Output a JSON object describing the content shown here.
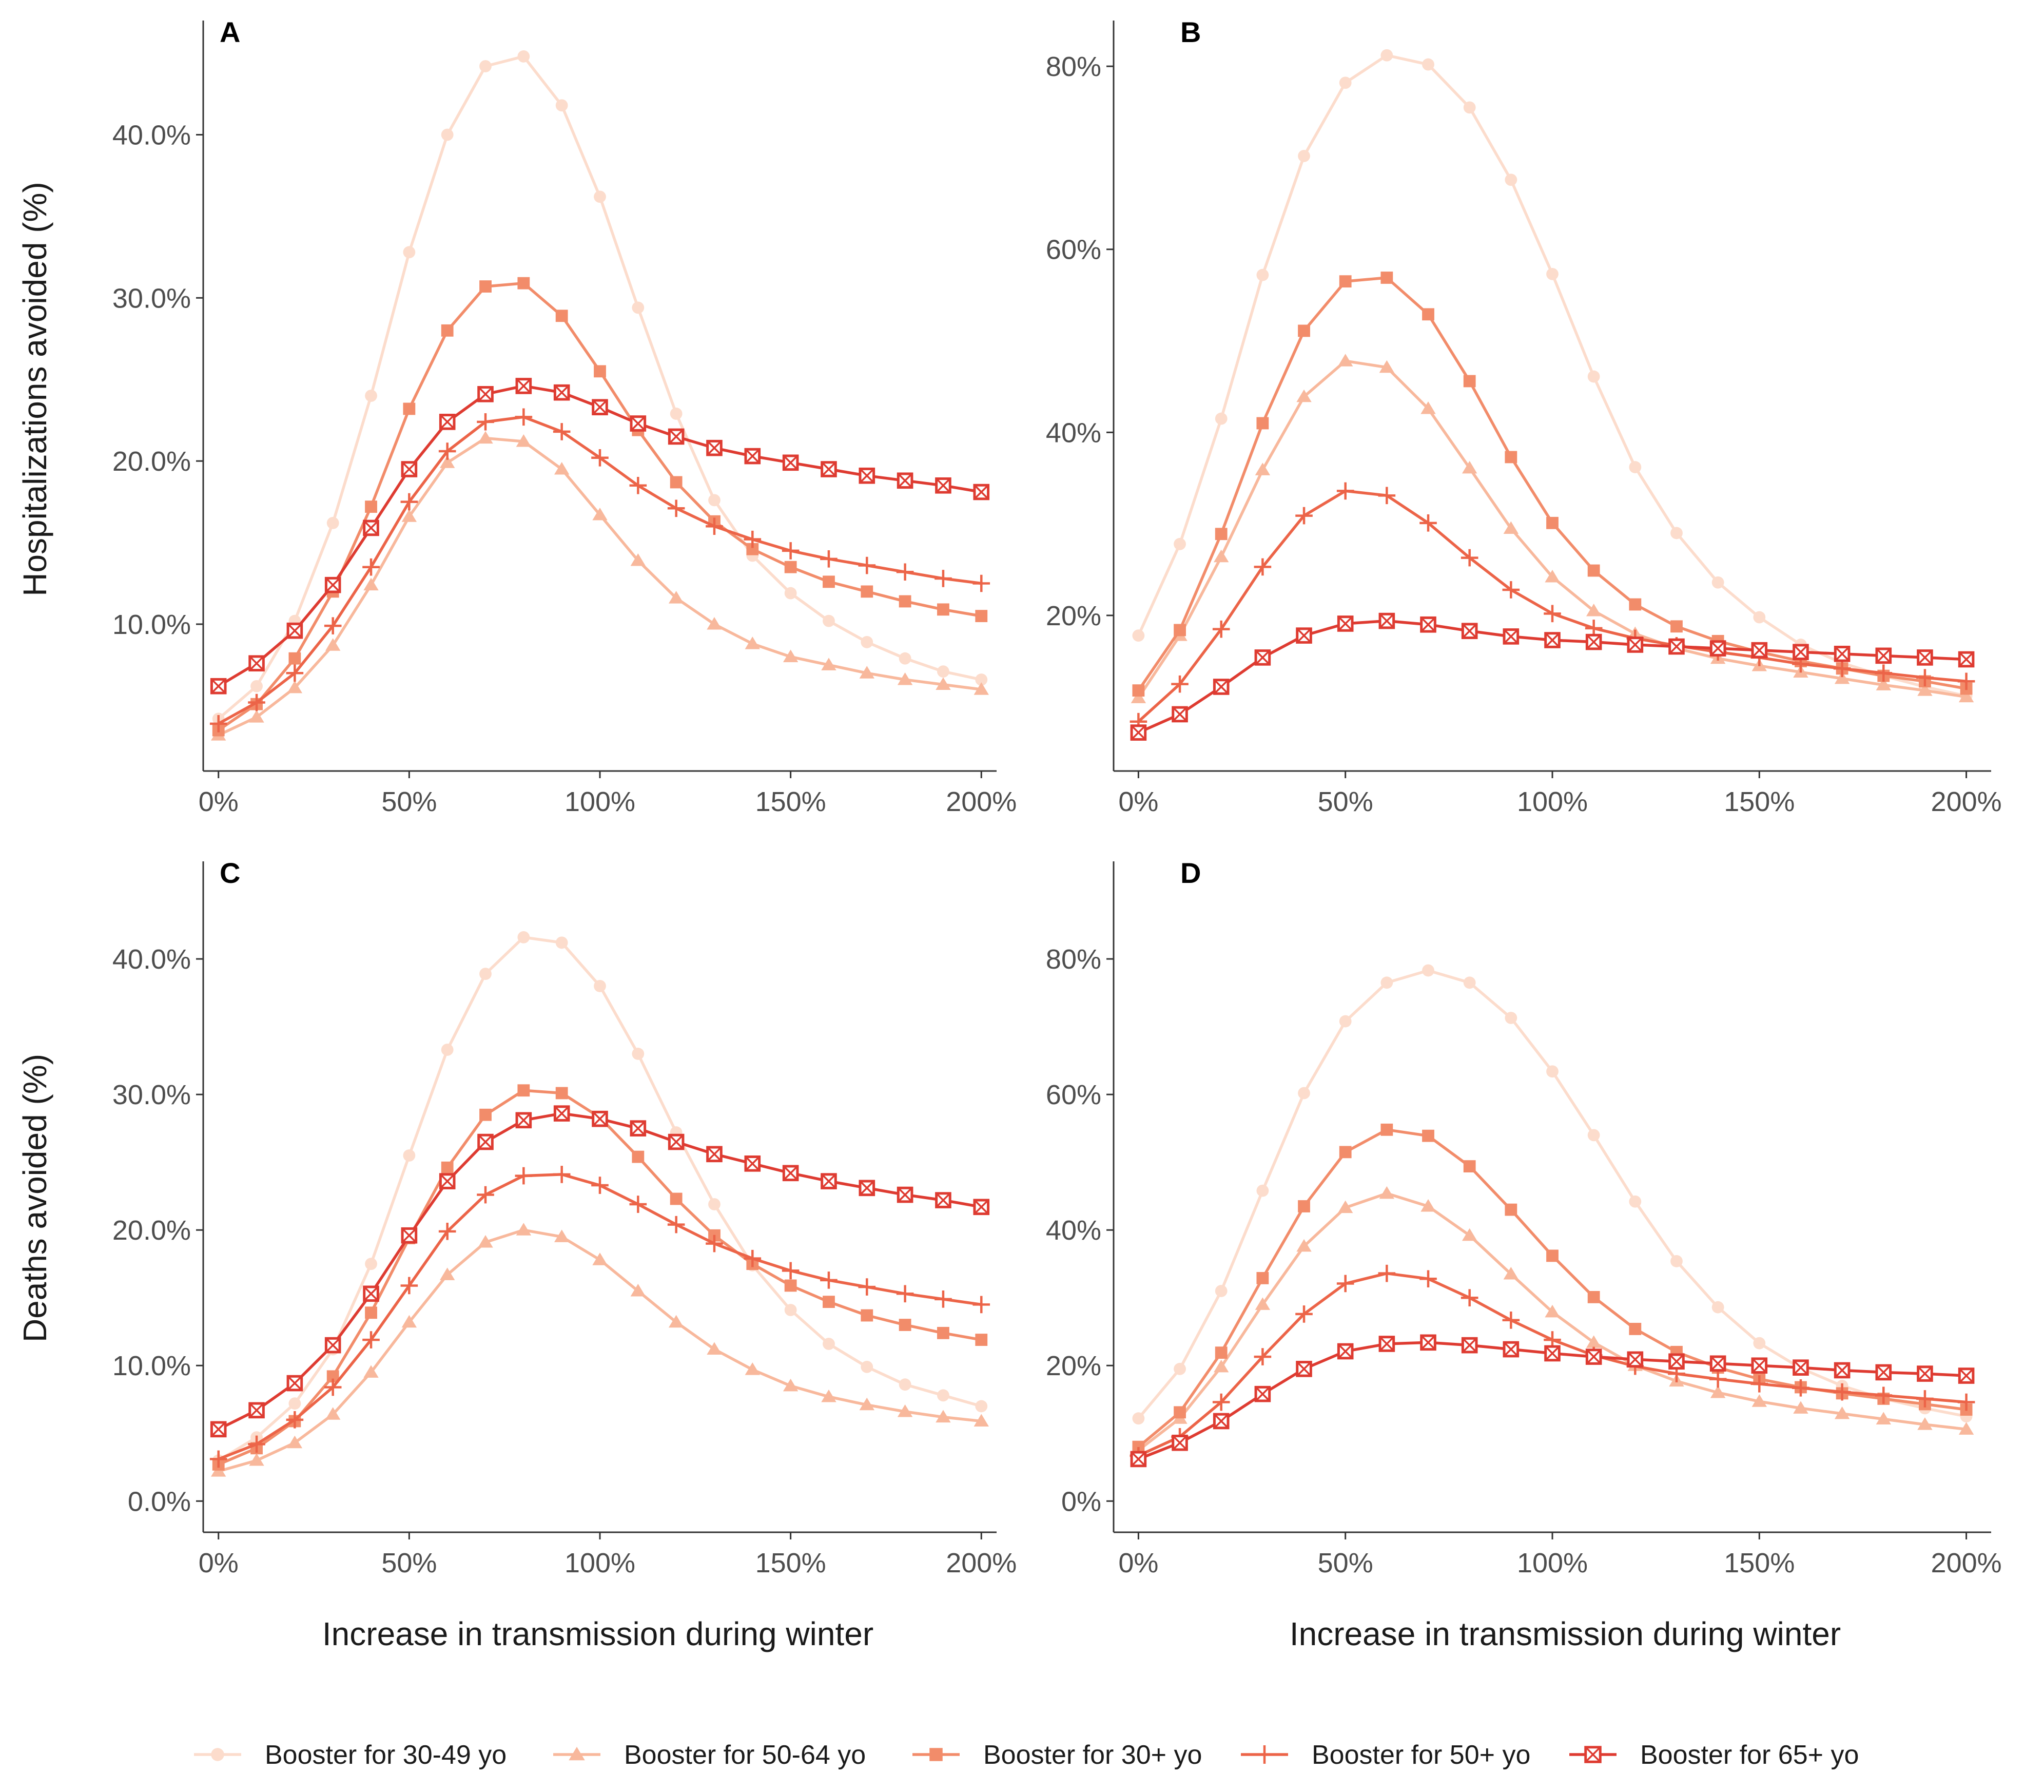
{
  "colors": {
    "Booster for 30-49 yo": "#FCDCCC",
    "Booster for 50-64 yo": "#F8B89C",
    "Booster for 30+ yo": "#F28C6A",
    "Booster for 50+ yo": "#EC6448",
    "Booster for 65+ yo": "#DE3B31"
  },
  "axis_titles": {
    "x": "Increase in transmission during winter",
    "y_top": "Hospitalizations avoided (%)",
    "y_bottom": "Deaths avoided (%)"
  },
  "legend": [
    {
      "name": "Booster for 30-49 yo",
      "marker": "circle"
    },
    {
      "name": "Booster for 50-64 yo",
      "marker": "triangle"
    },
    {
      "name": "Booster for 30+ yo",
      "marker": "square"
    },
    {
      "name": "Booster for 50+ yo",
      "marker": "plus"
    },
    {
      "name": "Booster for 65+ yo",
      "marker": "boxed-x"
    }
  ],
  "chart_data": [
    {
      "panel": "A",
      "type": "line",
      "xlabel": "",
      "ylabel": "Hospitalizations avoided (%)",
      "x": [
        0,
        10,
        20,
        30,
        40,
        50,
        60,
        70,
        80,
        90,
        100,
        110,
        120,
        130,
        140,
        150,
        160,
        170,
        180,
        190,
        200
      ],
      "xticks": [
        0,
        50,
        100,
        150,
        200
      ],
      "xtick_labels": [
        "0%",
        "50%",
        "100%",
        "150%",
        "200%"
      ],
      "xlim": [
        -4,
        204
      ],
      "ylim": [
        1.0,
        47.0
      ],
      "yticks": [
        10,
        20,
        30,
        40
      ],
      "ytick_labels": [
        "10.0%",
        "20.0%",
        "30.0%",
        "40.0%"
      ],
      "series": [
        {
          "name": "Booster for 30-49 yo",
          "values": [
            4.2,
            6.2,
            10.2,
            16.2,
            24.0,
            32.8,
            40.0,
            44.2,
            44.8,
            41.8,
            36.2,
            29.4,
            22.9,
            17.6,
            14.2,
            11.9,
            10.2,
            8.9,
            7.9,
            7.1,
            6.6
          ]
        },
        {
          "name": "Booster for 50-64 yo",
          "values": [
            3.2,
            4.3,
            6.1,
            8.7,
            12.4,
            16.6,
            19.9,
            21.4,
            21.2,
            19.5,
            16.7,
            13.9,
            11.6,
            10.0,
            8.8,
            8.0,
            7.5,
            7.0,
            6.6,
            6.3,
            6.0
          ]
        },
        {
          "name": "Booster for 30+ yo",
          "values": [
            3.5,
            5.1,
            7.9,
            12.0,
            17.2,
            23.2,
            28.0,
            30.7,
            30.9,
            28.9,
            25.5,
            21.9,
            18.7,
            16.3,
            14.6,
            13.5,
            12.6,
            12.0,
            11.4,
            10.9,
            10.5
          ]
        },
        {
          "name": "Booster for 50+ yo",
          "values": [
            3.9,
            5.2,
            7.0,
            9.9,
            13.5,
            17.5,
            20.6,
            22.4,
            22.7,
            21.8,
            20.2,
            18.5,
            17.1,
            16.0,
            15.2,
            14.5,
            14.0,
            13.6,
            13.2,
            12.8,
            12.5
          ]
        },
        {
          "name": "Booster for 65+ yo",
          "values": [
            6.2,
            7.6,
            9.6,
            12.4,
            15.9,
            19.5,
            22.4,
            24.1,
            24.6,
            24.2,
            23.3,
            22.3,
            21.5,
            20.8,
            20.3,
            19.9,
            19.5,
            19.1,
            18.8,
            18.5,
            18.1
          ]
        }
      ]
    },
    {
      "panel": "B",
      "type": "line",
      "xlabel": "",
      "ylabel": "",
      "x": [
        0,
        10,
        20,
        30,
        40,
        50,
        60,
        70,
        80,
        90,
        100,
        110,
        120,
        130,
        140,
        150,
        160,
        170,
        180,
        190,
        200
      ],
      "xticks": [
        0,
        50,
        100,
        150,
        200
      ],
      "xtick_labels": [
        "0%",
        "50%",
        "100%",
        "150%",
        "200%"
      ],
      "xlim": [
        -6,
        206
      ],
      "ylim": [
        3.0,
        85.0
      ],
      "yticks": [
        20,
        40,
        60,
        80
      ],
      "ytick_labels": [
        "20%",
        "40%",
        "60%",
        "80%"
      ],
      "series": [
        {
          "name": "Booster for 30-49 yo",
          "values": [
            17.8,
            27.8,
            41.5,
            57.2,
            70.2,
            78.2,
            81.2,
            80.2,
            75.5,
            67.6,
            57.3,
            46.1,
            36.2,
            29.0,
            23.6,
            19.8,
            16.8,
            14.8,
            13.4,
            12.2,
            11.2
          ]
        },
        {
          "name": "Booster for 50-64 yo",
          "values": [
            11.0,
            17.8,
            26.4,
            35.9,
            43.9,
            47.8,
            47.1,
            42.6,
            36.1,
            29.5,
            24.2,
            20.5,
            18.0,
            16.4,
            15.3,
            14.5,
            13.8,
            13.1,
            12.4,
            11.8,
            11.1
          ]
        },
        {
          "name": "Booster for 30+ yo",
          "values": [
            11.8,
            18.4,
            28.9,
            41.0,
            51.1,
            56.5,
            56.9,
            52.9,
            45.6,
            37.3,
            30.1,
            24.9,
            21.2,
            18.8,
            17.2,
            16.0,
            15.0,
            14.2,
            13.4,
            12.8,
            12.0
          ]
        },
        {
          "name": "Booster for 50+ yo",
          "values": [
            8.4,
            12.5,
            18.5,
            25.3,
            30.9,
            33.6,
            33.1,
            30.1,
            26.3,
            22.8,
            20.2,
            18.6,
            17.5,
            16.7,
            16.0,
            15.4,
            14.7,
            14.2,
            13.7,
            13.2,
            12.8
          ]
        },
        {
          "name": "Booster for 65+ yo",
          "values": [
            7.2,
            9.2,
            12.2,
            15.4,
            17.8,
            19.1,
            19.4,
            19.0,
            18.3,
            17.7,
            17.3,
            17.1,
            16.8,
            16.6,
            16.4,
            16.2,
            16.0,
            15.8,
            15.6,
            15.4,
            15.2
          ]
        }
      ]
    },
    {
      "panel": "C",
      "type": "line",
      "xlabel": "Increase in transmission during winter",
      "ylabel": "Deaths avoided (%)",
      "x": [
        0,
        10,
        20,
        30,
        40,
        50,
        60,
        70,
        80,
        90,
        100,
        110,
        120,
        130,
        140,
        150,
        160,
        170,
        180,
        190,
        200
      ],
      "xticks": [
        0,
        50,
        100,
        150,
        200
      ],
      "xtick_labels": [
        "0%",
        "50%",
        "100%",
        "150%",
        "200%"
      ],
      "xlim": [
        -4,
        204
      ],
      "ylim": [
        -2.3,
        47.2
      ],
      "yticks": [
        0,
        10,
        20,
        30,
        40
      ],
      "ytick_labels": [
        "0.0%",
        "10.0%",
        "20.0%",
        "30.0%",
        "40.0%"
      ],
      "series": [
        {
          "name": "Booster for 30-49 yo",
          "values": [
            3.0,
            4.7,
            7.2,
            11.2,
            17.5,
            25.5,
            33.3,
            38.9,
            41.6,
            41.2,
            38.0,
            33.0,
            27.2,
            21.9,
            17.4,
            14.1,
            11.6,
            9.9,
            8.6,
            7.8,
            7.0
          ]
        },
        {
          "name": "Booster for 50-64 yo",
          "values": [
            2.2,
            3.0,
            4.3,
            6.4,
            9.5,
            13.2,
            16.7,
            19.1,
            20.0,
            19.5,
            17.8,
            15.5,
            13.2,
            11.2,
            9.7,
            8.5,
            7.7,
            7.1,
            6.6,
            6.2,
            5.9
          ]
        },
        {
          "name": "Booster for 30+ yo",
          "values": [
            2.7,
            3.9,
            5.9,
            9.2,
            13.9,
            19.4,
            24.6,
            28.5,
            30.3,
            30.1,
            28.3,
            25.4,
            22.3,
            19.6,
            17.5,
            15.9,
            14.7,
            13.7,
            13.0,
            12.4,
            11.9
          ]
        },
        {
          "name": "Booster for 50+ yo",
          "values": [
            3.1,
            4.2,
            6.0,
            8.4,
            11.9,
            15.9,
            19.9,
            22.6,
            24.0,
            24.1,
            23.3,
            21.9,
            20.4,
            19.0,
            17.9,
            17.0,
            16.3,
            15.8,
            15.3,
            14.9,
            14.5
          ]
        },
        {
          "name": "Booster for 65+ yo",
          "values": [
            5.3,
            6.7,
            8.7,
            11.5,
            15.3,
            19.6,
            23.6,
            26.5,
            28.1,
            28.6,
            28.2,
            27.5,
            26.5,
            25.6,
            24.9,
            24.2,
            23.6,
            23.1,
            22.6,
            22.2,
            21.7
          ]
        }
      ]
    },
    {
      "panel": "D",
      "type": "line",
      "xlabel": "Increase in transmission during winter",
      "ylabel": "",
      "x": [
        0,
        10,
        20,
        30,
        40,
        50,
        60,
        70,
        80,
        90,
        100,
        110,
        120,
        130,
        140,
        150,
        160,
        170,
        180,
        190,
        200
      ],
      "xticks": [
        0,
        50,
        100,
        150,
        200
      ],
      "xtick_labels": [
        "0%",
        "50%",
        "100%",
        "150%",
        "200%"
      ],
      "xlim": [
        -6,
        206
      ],
      "ylim": [
        -4.6,
        94.4
      ],
      "yticks": [
        0,
        20,
        40,
        60,
        80
      ],
      "ytick_labels": [
        "0%",
        "20%",
        "40%",
        "60%",
        "80%"
      ],
      "series": [
        {
          "name": "Booster for 30-49 yo",
          "values": [
            12.2,
            19.5,
            31.0,
            45.8,
            60.2,
            70.8,
            76.5,
            78.3,
            76.5,
            71.3,
            63.4,
            54.0,
            44.2,
            35.4,
            28.6,
            23.3,
            19.6,
            17.0,
            15.1,
            13.7,
            12.5
          ]
        },
        {
          "name": "Booster for 50-64 yo",
          "values": [
            7.5,
            12.2,
            19.8,
            29.0,
            37.6,
            43.3,
            45.4,
            43.5,
            39.2,
            33.5,
            27.9,
            23.4,
            20.0,
            17.7,
            16.0,
            14.7,
            13.7,
            12.9,
            12.1,
            11.3,
            10.6
          ]
        },
        {
          "name": "Booster for 30+ yo",
          "values": [
            8.0,
            13.1,
            21.9,
            32.9,
            43.5,
            51.5,
            54.8,
            53.9,
            49.4,
            43.0,
            36.2,
            30.1,
            25.4,
            22.0,
            19.7,
            18.0,
            16.8,
            15.9,
            15.1,
            14.3,
            13.5
          ]
        },
        {
          "name": "Booster for 50+ yo",
          "values": [
            6.7,
            9.5,
            14.6,
            21.3,
            27.6,
            32.1,
            33.6,
            32.8,
            30.0,
            26.7,
            23.8,
            21.5,
            19.9,
            18.8,
            18.0,
            17.3,
            16.7,
            16.1,
            15.6,
            15.1,
            14.6
          ]
        },
        {
          "name": "Booster for 65+ yo",
          "values": [
            6.2,
            8.6,
            11.8,
            15.8,
            19.5,
            22.1,
            23.2,
            23.4,
            23.0,
            22.4,
            21.8,
            21.3,
            20.9,
            20.6,
            20.3,
            20.0,
            19.7,
            19.3,
            19.0,
            18.8,
            18.5
          ]
        }
      ]
    }
  ]
}
